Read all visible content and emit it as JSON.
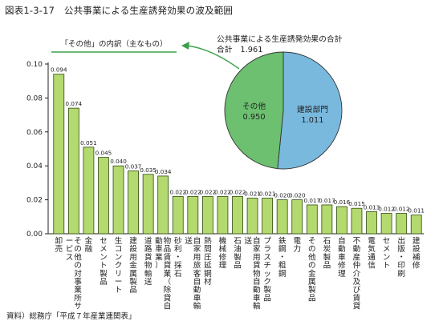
{
  "figure_title": "図表1-3-17　公共事業による生産誘発効果の波及範囲",
  "source": "資料）総務庁「平成７年産業連関表」",
  "colors": {
    "bar_fill": "#b4d96e",
    "bar_stroke": "#2e4a12",
    "pie_green": "#6cc070",
    "pie_blue": "#7ab9de",
    "arrow": "#3aa14a",
    "legend_underline": "#3aa14a"
  },
  "chart_data": [
    {
      "type": "bar",
      "title": "「その他」の内訳（主なもの）",
      "ylim": [
        0,
        0.1
      ],
      "yticks": [
        "0.00",
        "0.02",
        "0.04",
        "0.06",
        "0.08",
        "0.10"
      ],
      "grid": false,
      "categories": [
        "卸売",
        "その他の対事業所サービス",
        "金融",
        "セメント製品",
        "生コンクリート",
        "建設用金属製品",
        "道路貨物輸送",
        "物品賃貸業（除貸自動車業）",
        "砂利・採石",
        "自家用旅客自動車輸送",
        "熱間圧延鋼材",
        "機械修理",
        "石油製品",
        "自家用貨物自動車輸送",
        "プラスチック製品",
        "鉄鋼・粗鋼",
        "電力",
        "その他の金属製品",
        "石炭製品",
        "自動車修理",
        "不動産仲介及び賃貸",
        "電気通信",
        "セメント",
        "出版・印刷",
        "建設補修"
      ],
      "value_labels": [
        "0.094",
        "0.074",
        "0.051",
        "0.045",
        "0.040",
        "0.037",
        "0.035",
        "0.034",
        "0.022",
        "0.022",
        "0.022",
        "0.022",
        "0.022",
        "0.021",
        "0.021",
        "0.020",
        "0.020",
        "0.017",
        "0.017",
        "0.016",
        "0.015",
        "0.013",
        "0.012",
        "0.012",
        "0.011"
      ],
      "values": [
        0.094,
        0.074,
        0.051,
        0.045,
        0.04,
        0.037,
        0.035,
        0.034,
        0.022,
        0.022,
        0.022,
        0.022,
        0.022,
        0.021,
        0.021,
        0.02,
        0.02,
        0.017,
        0.017,
        0.016,
        0.015,
        0.013,
        0.012,
        0.012,
        0.011
      ]
    },
    {
      "type": "pie",
      "title": "公共事業による生産誘発効果の合計",
      "total_label": "合計",
      "total_value": "1.961",
      "slices": [
        {
          "label": "建設部門",
          "value_label": "1.011",
          "value": 1.011,
          "color": "#7ab9de"
        },
        {
          "label": "その他",
          "value_label": "0.950",
          "value": 0.95,
          "color": "#6cc070"
        }
      ]
    }
  ]
}
